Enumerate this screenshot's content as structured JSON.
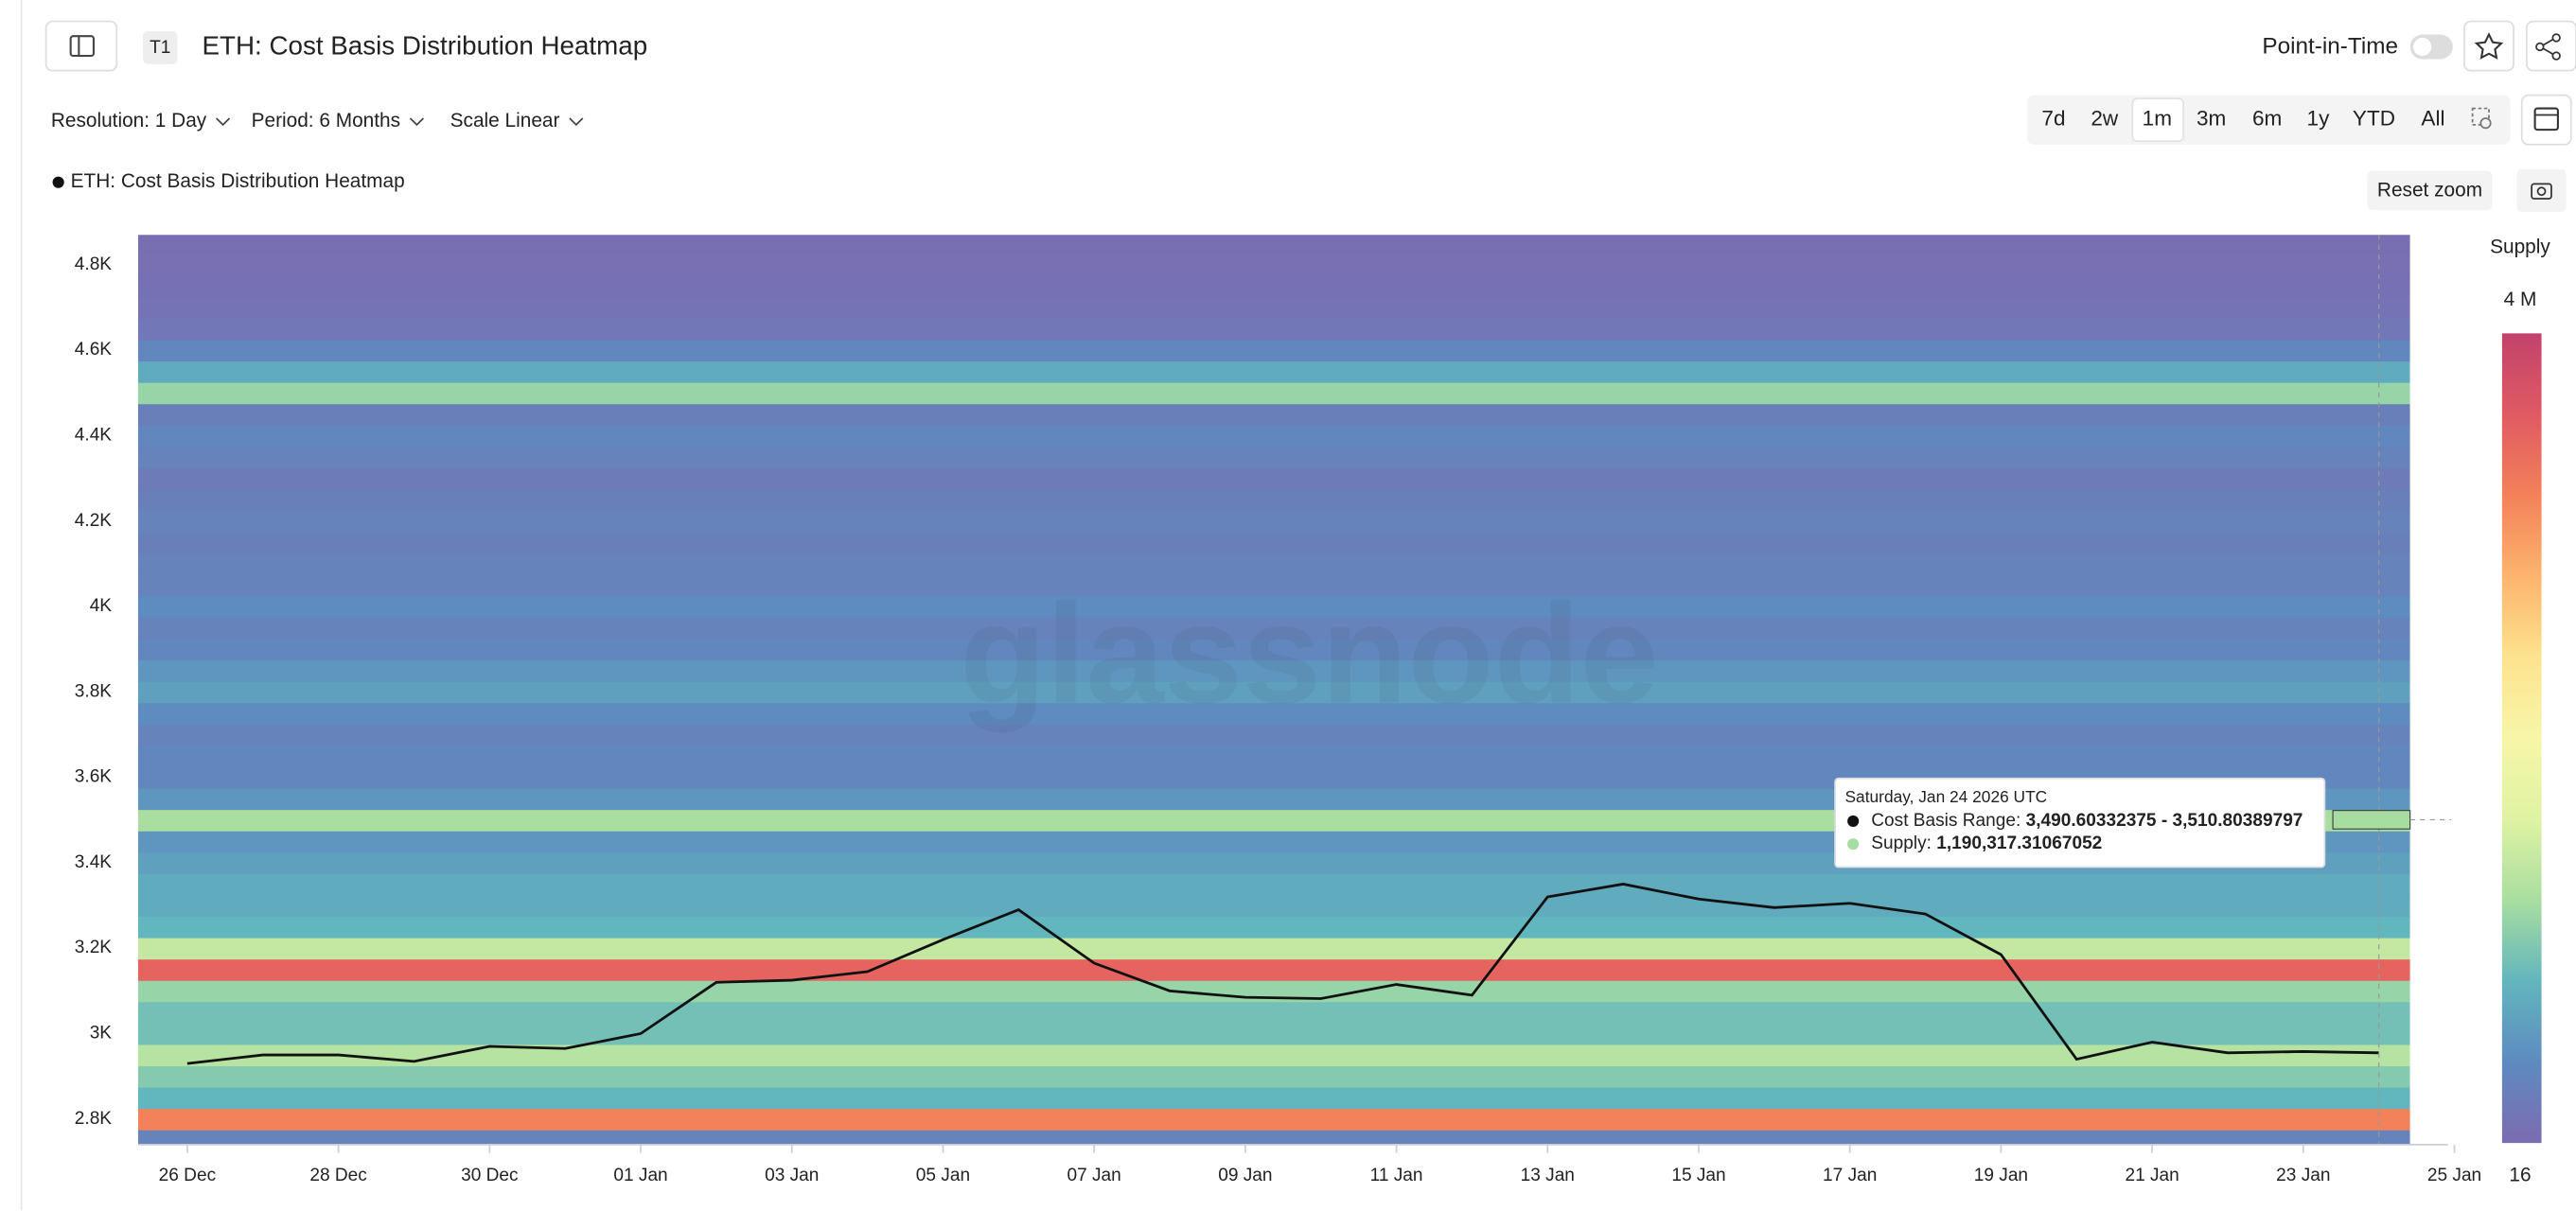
{
  "ui": {
    "tag": "T1",
    "point_in_time": "Point-in-Time",
    "filters": [
      "Resolution: 1 Day",
      "Period: 6 Months",
      "Scale Linear"
    ],
    "ranges": [
      "7d",
      "2w",
      "1m",
      "3m",
      "6m",
      "1y",
      "YTD",
      "All"
    ],
    "reset_zoom": "Reset zoom",
    "watermark": "glassnode"
  },
  "chart_data": {
    "type": "heatmap",
    "title": "ETH: Cost Basis Distribution Heatmap",
    "categories": [
      null,
      "26 Dec",
      null,
      "28 Dec",
      null,
      "30 Dec",
      null,
      "01 Jan",
      null,
      "03 Jan",
      null,
      "05 Jan",
      null,
      "07 Jan",
      null,
      "09 Jan",
      null,
      "11 Jan",
      null,
      "13 Jan",
      null,
      "15 Jan",
      null,
      "17 Jan",
      null,
      "19 Jan",
      null,
      "21 Jan",
      null,
      "23 Jan",
      null,
      "25 Jan"
    ],
    "series": [
      {
        "name": "ETH: Cost Basis Distribution Heatmap",
        "color": "#111111",
        "values": [
          null,
          2930,
          2950,
          2950,
          2935,
          2970,
          2965,
          3000,
          3120,
          3125,
          3145,
          3220,
          3290,
          3165,
          3100,
          3085,
          3082,
          3115,
          3090,
          3320,
          3350,
          3315,
          3295,
          3305,
          3280,
          3185,
          2940,
          2980,
          2955,
          2958,
          2955,
          null
        ]
      }
    ],
    "y_bins": [
      2725,
      2775,
      2825,
      2875,
      2925,
      2975,
      3025,
      3075,
      3125,
      3175,
      3225,
      3275,
      3325,
      3375,
      3425,
      3475,
      3525,
      3575,
      3625,
      3675,
      3725,
      3775,
      3825,
      3875,
      3925,
      3975,
      4025,
      4075,
      4125,
      4175,
      4225,
      4275,
      4325,
      4375,
      4425,
      4475,
      4525,
      4575,
      4625,
      4675,
      4725,
      4775,
      4825,
      4875
    ],
    "z": [
      300000,
      3200000,
      800000,
      1000000,
      1300000,
      900000,
      900000,
      1100000,
      3500000,
      1400000,
      800000,
      700000,
      700000,
      600000,
      500000,
      1200000,
      500000,
      350000,
      350000,
      300000,
      400000,
      600000,
      500000,
      350000,
      300000,
      400000,
      300000,
      300000,
      250000,
      300000,
      250000,
      200000,
      300000,
      350000,
      250000,
      1100000,
      700000,
      350000,
      150000,
      100000,
      80000,
      60000,
      50000
    ],
    "ylim": [
      2740,
      4870
    ],
    "yticks": [
      {
        "value": 2800,
        "label": "2.8K"
      },
      {
        "value": 3000,
        "label": "3K"
      },
      {
        "value": 3200,
        "label": "3.2K"
      },
      {
        "value": 3400,
        "label": "3.4K"
      },
      {
        "value": 3600,
        "label": "3.6K"
      },
      {
        "value": 3800,
        "label": "3.8K"
      },
      {
        "value": 4000,
        "label": "4K"
      },
      {
        "value": 4200,
        "label": "4.2K"
      },
      {
        "value": 4400,
        "label": "4.4K"
      },
      {
        "value": 4600,
        "label": "4.6K"
      },
      {
        "value": 4800,
        "label": "4.8K"
      }
    ],
    "colorbar_title": "Supply",
    "zlim": [
      16,
      4000000
    ],
    "zticks": [
      {
        "value": 4000000,
        "label": "4 M"
      },
      16
    ],
    "colorscale": [
      "#7c6bb1",
      "#5e8bc0",
      "#62b6bd",
      "#a9dea0",
      "#dff3a3",
      "#f7f6a8",
      "#fde38e",
      "#fcb46d",
      "#f3815a",
      "#e05a62",
      "#c2426c"
    ],
    "tooltip": {
      "date": "Saturday, Jan 24 2026 UTC",
      "index": 30,
      "range_label": "Cost Basis Range:",
      "range": [
        3490.60332375,
        3510.80389797
      ],
      "range_text": "3,490.60332375 - 3,510.80389797",
      "supply_label": "Supply:",
      "supply": {
        "value": 1190317.31067052,
        "label": "1,190,317.31067052"
      }
    }
  }
}
